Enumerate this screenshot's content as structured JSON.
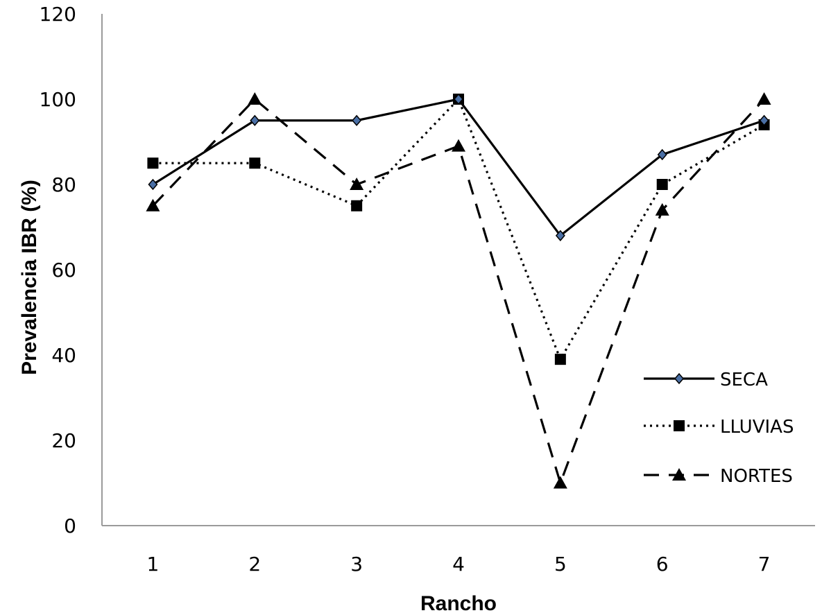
{
  "chart_data": {
    "type": "line",
    "title": "",
    "xlabel": "Rancho",
    "ylabel": "Prevalencia IBR (%)",
    "categories": [
      "1",
      "2",
      "3",
      "4",
      "5",
      "6",
      "7"
    ],
    "ylim": [
      0,
      120
    ],
    "yticks": [
      0,
      20,
      40,
      60,
      80,
      100,
      120
    ],
    "grid": false,
    "legend_position": "right",
    "series": [
      {
        "name": "SECA",
        "values": [
          80,
          95,
          95,
          100,
          68,
          87,
          95
        ],
        "line_style": "solid",
        "marker": "diamond",
        "marker_color": "#4a6fa5",
        "color": "#000000"
      },
      {
        "name": "LLUVIAS",
        "values": [
          85,
          85,
          75,
          100,
          39,
          80,
          94
        ],
        "line_style": "dotted",
        "marker": "square",
        "marker_color": "#000000",
        "color": "#000000"
      },
      {
        "name": "NORTES",
        "values": [
          75,
          100,
          80,
          89,
          10,
          74,
          100
        ],
        "line_style": "dashed",
        "marker": "triangle",
        "marker_color": "#000000",
        "color": "#000000"
      }
    ]
  }
}
